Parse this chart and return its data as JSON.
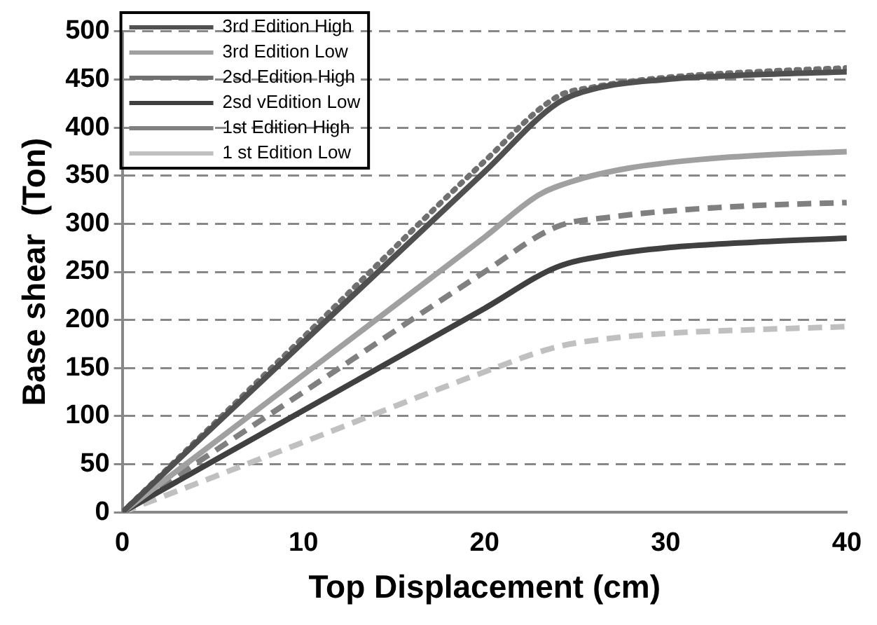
{
  "chart_data": {
    "type": "line",
    "xlabel": "Top Displacement (cm)",
    "ylabel": "Base shear  (Ton)",
    "xlim": [
      0,
      40
    ],
    "xticks": [
      0,
      10,
      20,
      30,
      40
    ],
    "ylim": [
      0,
      500
    ],
    "yticks": [
      0,
      50,
      100,
      150,
      200,
      250,
      300,
      350,
      400,
      450,
      500
    ],
    "grid": "y",
    "legend": "top left",
    "marker": "none",
    "series": [
      {
        "name": "3rd Edition High",
        "color": "#505050",
        "line_style": "solid",
        "x": [
          0,
          10,
          20,
          24,
          26,
          30,
          35,
          40
        ],
        "values": [
          0,
          177,
          354,
          425,
          440,
          450,
          455,
          458
        ]
      },
      {
        "name": "3rd Edition Low",
        "color": "#a0a0a0",
        "line_style": "solid",
        "x": [
          0,
          10,
          20,
          23,
          25,
          28,
          32,
          36,
          40
        ],
        "values": [
          0,
          143,
          286,
          330,
          345,
          358,
          367,
          372,
          375
        ]
      },
      {
        "name": "2sd Edition High",
        "color": "#707070",
        "line_style": "dotted",
        "x": [
          0,
          10,
          20,
          24,
          26,
          30,
          35,
          40
        ],
        "values": [
          0,
          182,
          365,
          432,
          442,
          452,
          458,
          462
        ]
      },
      {
        "name": "2sd vEdition Low",
        "color": "#404040",
        "line_style": "solid",
        "x": [
          0,
          10,
          20,
          24,
          27,
          30,
          35,
          40
        ],
        "values": [
          0,
          106,
          212,
          255,
          268,
          275,
          281,
          285
        ]
      },
      {
        "name": "1st Edition High",
        "color": "#808080",
        "line_style": "dashed",
        "x": [
          0,
          10,
          20,
          24,
          27,
          30,
          35,
          40
        ],
        "values": [
          0,
          125,
          250,
          297,
          307,
          313,
          319,
          322
        ]
      },
      {
        "name": "1 st Edition Low",
        "color": "#c0c0c0",
        "line_style": "dashed",
        "x": [
          0,
          10,
          20,
          24,
          27,
          30,
          35,
          40
        ],
        "values": [
          0,
          73,
          146,
          172,
          181,
          186,
          190,
          193
        ]
      }
    ]
  }
}
